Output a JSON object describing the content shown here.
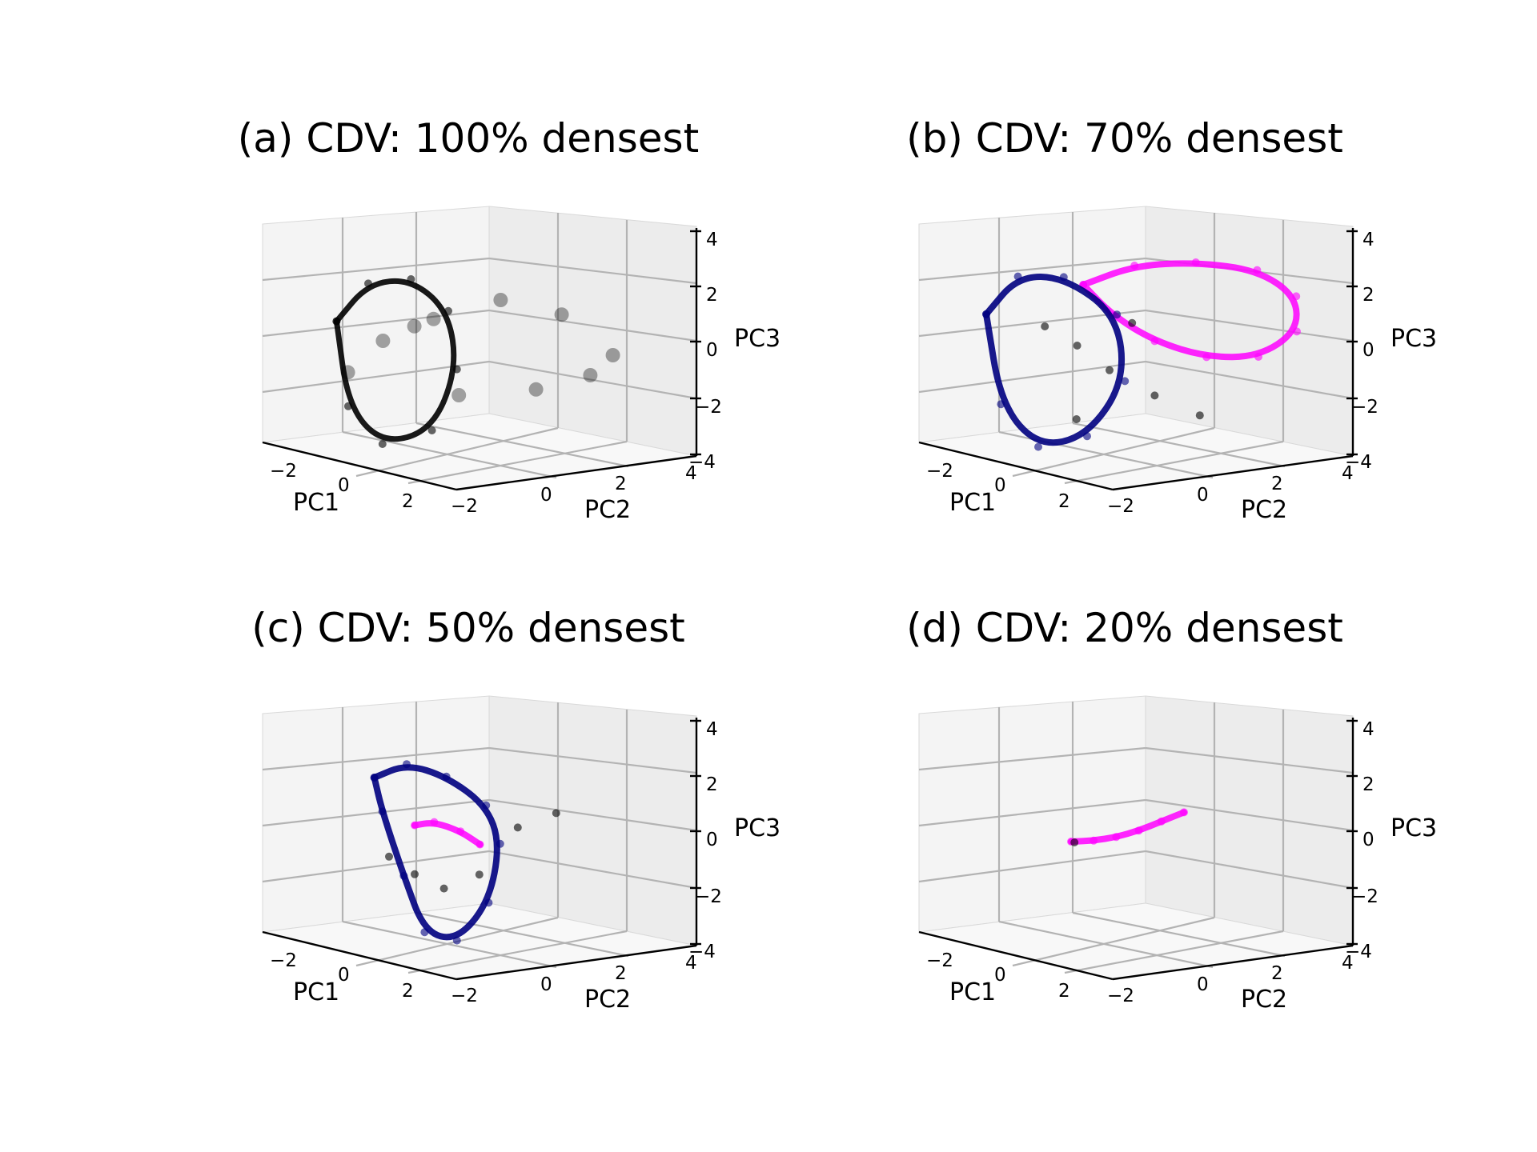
{
  "figure": {
    "panels": [
      {
        "title": "(a) CDV: 100% densest"
      },
      {
        "title": "(b) CDV: 70% densest"
      },
      {
        "title": "(c) CDV: 50% densest"
      },
      {
        "title": "(d) CDV: 20% densest"
      }
    ]
  },
  "colors": {
    "points": "#000000",
    "magenta": "#ff00ff",
    "navy": "#000080"
  },
  "chart_data": [
    {
      "type": "scatter",
      "title": "(a) CDV: 100% densest",
      "xlabel": "PC1",
      "ylabel": "PC2",
      "zlabel": "PC3",
      "x_ticks": [
        "−2",
        "0",
        "2"
      ],
      "y_ticks": [
        "−2",
        "0",
        "2",
        "4"
      ],
      "z_ticks": [
        "−4",
        "−2",
        "0",
        "2",
        "4"
      ],
      "xlim": [
        -3,
        3
      ],
      "ylim": [
        -2,
        4
      ],
      "zlim": [
        -4,
        4
      ],
      "grid": true,
      "series": [
        {
          "color": "#000000",
          "role": "scatter cloud",
          "x": [
            -1.4,
            -0.8,
            0.2,
            1.2,
            2.0,
            -1.9,
            -0.5,
            0.8,
            1.6,
            -1.1
          ],
          "y": [
            -0.6,
            0.4,
            1.5,
            2.4,
            3.2,
            -1.2,
            0.9,
            2.0,
            2.9,
            0.1
          ],
          "z": [
            0.4,
            1.2,
            2.0,
            1.6,
            0.2,
            -0.8,
            -1.6,
            -1.2,
            -0.6,
            0.9
          ]
        },
        {
          "color": "#000000",
          "role": "trajectory loops",
          "x": [
            -2.6,
            -2.2,
            -1.2,
            0.0,
            0.8,
            0.6,
            -0.6,
            -1.8,
            -2.6
          ],
          "y": [
            -0.8,
            -0.2,
            0.1,
            0.0,
            -0.6,
            -1.2,
            -1.5,
            -1.3,
            -0.8
          ],
          "z": [
            0.8,
            2.2,
            2.6,
            1.8,
            0.0,
            -2.2,
            -3.0,
            -2.0,
            0.8
          ]
        }
      ]
    },
    {
      "type": "scatter",
      "title": "(b) CDV: 70% densest",
      "xlabel": "PC1",
      "ylabel": "PC2",
      "zlabel": "PC3",
      "x_ticks": [
        "−2",
        "0",
        "2"
      ],
      "y_ticks": [
        "−2",
        "0",
        "2",
        "4"
      ],
      "z_ticks": [
        "−4",
        "−2",
        "0",
        "2",
        "4"
      ],
      "xlim": [
        -3,
        3
      ],
      "ylim": [
        -2,
        4
      ],
      "zlim": [
        -4,
        4
      ],
      "grid": true,
      "series": [
        {
          "color": "#ff00ff",
          "role": "upper loop",
          "x": [
            -1.0,
            -0.2,
            0.9,
            2.0,
            2.8,
            3.0,
            2.4,
            1.4,
            0.4,
            -0.4,
            -1.0
          ],
          "y": [
            0.4,
            1.2,
            2.0,
            2.8,
            3.2,
            3.0,
            2.4,
            1.8,
            1.2,
            0.7,
            0.4
          ],
          "z": [
            2.4,
            3.2,
            3.5,
            3.4,
            2.6,
            1.4,
            0.4,
            0.2,
            0.6,
            1.4,
            2.4
          ]
        },
        {
          "color": "#000080",
          "role": "outer loops",
          "x": [
            -2.8,
            -2.4,
            -1.4,
            0.0,
            0.6,
            0.2,
            -0.8,
            -2.0,
            -2.8
          ],
          "y": [
            -0.8,
            -0.2,
            0.2,
            0.4,
            0.0,
            -0.8,
            -1.3,
            -1.2,
            -0.8
          ],
          "z": [
            1.0,
            2.4,
            2.6,
            1.6,
            -0.6,
            -2.6,
            -3.2,
            -2.0,
            1.0
          ]
        },
        {
          "color": "#000000",
          "role": "scatter",
          "x": [
            -1.6,
            -1.0,
            -0.4,
            0.4,
            1.2,
            -1.2,
            0.0
          ],
          "y": [
            -0.2,
            0.2,
            0.6,
            1.2,
            1.8,
            0.4,
            0.9
          ],
          "z": [
            0.8,
            0.2,
            -0.6,
            -1.4,
            -2.0,
            -2.6,
            1.2
          ]
        }
      ]
    },
    {
      "type": "scatter",
      "title": "(c) CDV: 50% densest",
      "xlabel": "PC1",
      "ylabel": "PC2",
      "zlabel": "PC3",
      "x_ticks": [
        "−2",
        "0",
        "2"
      ],
      "y_ticks": [
        "−2",
        "0",
        "2",
        "4"
      ],
      "z_ticks": [
        "−4",
        "−2",
        "0",
        "2",
        "4"
      ],
      "xlim": [
        -3,
        3
      ],
      "ylim": [
        -2,
        4
      ],
      "zlim": [
        -4,
        4
      ],
      "grid": true,
      "series": [
        {
          "color": "#000080",
          "role": "loop",
          "x": [
            -2.2,
            -1.6,
            -0.6,
            0.4,
            1.0,
            1.2,
            0.8,
            0.2,
            -0.6,
            -1.6,
            -2.2
          ],
          "y": [
            0.0,
            0.4,
            0.6,
            0.8,
            0.6,
            0.0,
            -0.6,
            -1.0,
            -0.8,
            -0.4,
            0.0
          ],
          "z": [
            2.0,
            2.6,
            2.4,
            1.6,
            0.4,
            -1.6,
            -3.0,
            -2.8,
            -1.0,
            1.0,
            2.0
          ]
        },
        {
          "color": "#ff00ff",
          "role": "inner segment",
          "x": [
            -1.0,
            -0.6,
            0.0,
            0.4
          ],
          "y": [
            0.0,
            0.2,
            0.4,
            0.6
          ],
          "z": [
            0.6,
            0.8,
            0.6,
            0.2
          ]
        },
        {
          "color": "#000000",
          "role": "scatter",
          "x": [
            -1.4,
            -1.0,
            -0.4,
            0.2,
            0.8,
            1.4
          ],
          "y": [
            -0.4,
            0.0,
            0.3,
            0.8,
            1.4,
            2.0
          ],
          "z": [
            -0.6,
            -1.2,
            -1.6,
            -1.0,
            0.8,
            1.4
          ]
        }
      ]
    },
    {
      "type": "scatter",
      "title": "(d) CDV: 20% densest",
      "xlabel": "PC1",
      "ylabel": "PC2",
      "zlabel": "PC3",
      "x_ticks": [
        "−2",
        "0",
        "2"
      ],
      "y_ticks": [
        "−2",
        "0",
        "2",
        "4"
      ],
      "z_ticks": [
        "−4",
        "−2",
        "0",
        "2",
        "4"
      ],
      "xlim": [
        -3,
        3
      ],
      "ylim": [
        -2,
        4
      ],
      "zlim": [
        -4,
        4
      ],
      "grid": true,
      "series": [
        {
          "color": "#ff00ff",
          "role": "short arc",
          "x": [
            -1.0,
            -0.6,
            -0.2,
            0.2,
            0.6,
            1.0
          ],
          "y": [
            0.0,
            0.3,
            0.6,
            0.9,
            1.2,
            1.5
          ],
          "z": [
            0.0,
            0.1,
            0.3,
            0.6,
            1.0,
            1.4
          ]
        },
        {
          "color": "#000000",
          "role": "point",
          "x": [
            -0.9
          ],
          "y": [
            0.0
          ],
          "z": [
            0.0
          ]
        }
      ]
    }
  ]
}
